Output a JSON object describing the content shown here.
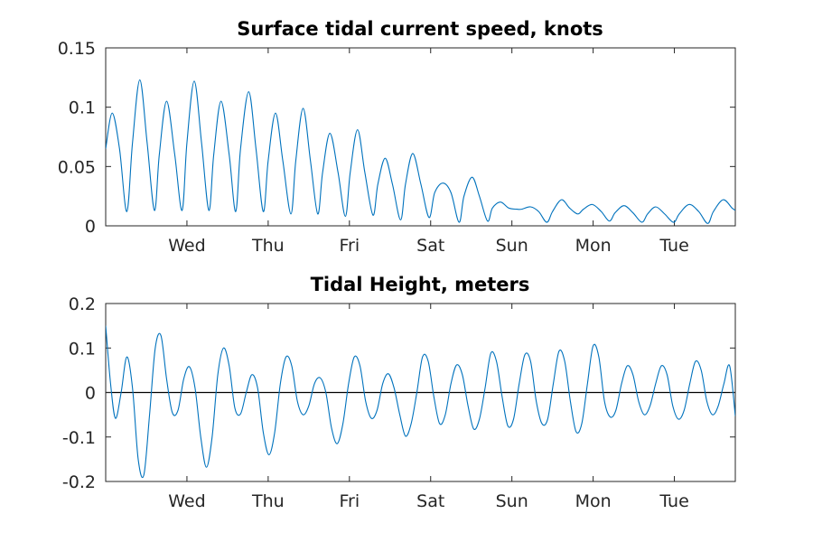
{
  "colors": {
    "series": "#0072bd",
    "axes": "#262626",
    "zero_line": "#000000",
    "background": "#ffffff"
  },
  "chart_data": [
    {
      "type": "line",
      "title": "Surface tidal current speed, knots",
      "xlabel": "",
      "ylabel": "",
      "x_unit": "days",
      "xlim": [
        0,
        7.75
      ],
      "ylim": [
        0,
        0.15
      ],
      "yticks": [
        0,
        0.05,
        0.1,
        0.15
      ],
      "ytick_labels": [
        "0",
        "0.05",
        "0.1",
        "0.15"
      ],
      "xticks": [
        1,
        2,
        3,
        4,
        5,
        6,
        7
      ],
      "xtick_labels": [
        "Wed",
        "Thu",
        "Fri",
        "Sat",
        "Sun",
        "Mon",
        "Tue"
      ],
      "grid": false,
      "series": [
        {
          "x": [
            0,
            0.08,
            0.17,
            0.26,
            0.33,
            0.42,
            0.51,
            0.6,
            0.66,
            0.75,
            0.85,
            0.94,
            1.0,
            1.09,
            1.18,
            1.27,
            1.33,
            1.42,
            1.52,
            1.6,
            1.66,
            1.76,
            1.85,
            1.94,
            2.0,
            2.09,
            2.18,
            2.28,
            2.34,
            2.43,
            2.52,
            2.61,
            2.67,
            2.76,
            2.86,
            2.95,
            3.01,
            3.1,
            3.19,
            3.29,
            3.35,
            3.44,
            3.53,
            3.63,
            3.69,
            3.78,
            3.88,
            3.98,
            4.05,
            4.15,
            4.25,
            4.35,
            4.41,
            4.51,
            4.6,
            4.7,
            4.76,
            4.86,
            4.96,
            5.06,
            5.12,
            5.23,
            5.33,
            5.43,
            5.5,
            5.61,
            5.71,
            5.81,
            5.88,
            5.99,
            6.1,
            6.2,
            6.27,
            6.38,
            6.49,
            6.6,
            6.67,
            6.77,
            6.88,
            6.99,
            7.06,
            7.18,
            7.3,
            7.41,
            7.48,
            7.6,
            7.71,
            7.75
          ],
          "y": [
            0.065,
            0.095,
            0.065,
            0.012,
            0.07,
            0.123,
            0.07,
            0.013,
            0.06,
            0.105,
            0.06,
            0.013,
            0.07,
            0.122,
            0.07,
            0.013,
            0.06,
            0.105,
            0.06,
            0.012,
            0.065,
            0.113,
            0.065,
            0.012,
            0.055,
            0.095,
            0.055,
            0.01,
            0.055,
            0.099,
            0.055,
            0.01,
            0.045,
            0.078,
            0.045,
            0.008,
            0.045,
            0.081,
            0.045,
            0.009,
            0.035,
            0.057,
            0.035,
            0.005,
            0.035,
            0.061,
            0.035,
            0.007,
            0.028,
            0.036,
            0.028,
            0.003,
            0.025,
            0.041,
            0.025,
            0.004,
            0.015,
            0.02,
            0.015,
            0.014,
            0.014,
            0.016,
            0.012,
            0.003,
            0.012,
            0.022,
            0.015,
            0.01,
            0.014,
            0.018,
            0.012,
            0.004,
            0.011,
            0.017,
            0.011,
            0.003,
            0.01,
            0.016,
            0.01,
            0.003,
            0.01,
            0.018,
            0.012,
            0.002,
            0.012,
            0.022,
            0.015,
            0.013
          ]
        }
      ]
    },
    {
      "type": "line",
      "title": "Tidal Height, meters",
      "xlabel": "",
      "ylabel": "",
      "x_unit": "days",
      "xlim": [
        0,
        7.75
      ],
      "ylim": [
        -0.2,
        0.2
      ],
      "yticks": [
        -0.2,
        -0.1,
        0,
        0.1,
        0.2
      ],
      "ytick_labels": [
        "-0.2",
        "-0.1",
        "0",
        "0.1",
        "0.2"
      ],
      "xticks": [
        1,
        2,
        3,
        4,
        5,
        6,
        7
      ],
      "xtick_labels": [
        "Wed",
        "Thu",
        "Fri",
        "Sat",
        "Sun",
        "Mon",
        "Tue"
      ],
      "grid": false,
      "reference_line_y": 0,
      "series": [
        {
          "x": [
            0,
            0.06,
            0.12,
            0.19,
            0.26,
            0.33,
            0.4,
            0.47,
            0.54,
            0.61,
            0.68,
            0.75,
            0.82,
            0.89,
            0.96,
            1.03,
            1.1,
            1.17,
            1.24,
            1.31,
            1.38,
            1.45,
            1.52,
            1.59,
            1.66,
            1.73,
            1.8,
            1.87,
            1.94,
            2.01,
            2.08,
            2.15,
            2.22,
            2.29,
            2.36,
            2.43,
            2.5,
            2.57,
            2.64,
            2.71,
            2.78,
            2.85,
            2.92,
            2.99,
            3.06,
            3.13,
            3.2,
            3.27,
            3.34,
            3.41,
            3.48,
            3.55,
            3.62,
            3.69,
            3.76,
            3.83,
            3.9,
            3.97,
            4.04,
            4.11,
            4.18,
            4.25,
            4.32,
            4.39,
            4.46,
            4.53,
            4.6,
            4.67,
            4.74,
            4.81,
            4.88,
            4.95,
            5.02,
            5.09,
            5.16,
            5.23,
            5.3,
            5.37,
            5.44,
            5.51,
            5.58,
            5.65,
            5.72,
            5.79,
            5.86,
            5.93,
            6.0,
            6.07,
            6.14,
            6.21,
            6.28,
            6.35,
            6.42,
            6.49,
            6.56,
            6.63,
            6.7,
            6.77,
            6.84,
            6.91,
            6.98,
            7.05,
            7.12,
            7.19,
            7.26,
            7.33,
            7.4,
            7.47,
            7.54,
            7.61,
            7.68,
            7.75
          ],
          "y": [
            0.15,
            0.02,
            -0.058,
            0.0,
            0.08,
            0.01,
            -0.15,
            -0.185,
            -0.05,
            0.1,
            0.128,
            0.03,
            -0.045,
            -0.04,
            0.03,
            0.058,
            0.01,
            -0.1,
            -0.168,
            -0.1,
            0.04,
            0.1,
            0.06,
            -0.035,
            -0.048,
            0.0,
            0.04,
            0.01,
            -0.09,
            -0.14,
            -0.09,
            0.02,
            0.08,
            0.06,
            -0.02,
            -0.05,
            -0.03,
            0.02,
            0.033,
            0.0,
            -0.08,
            -0.115,
            -0.07,
            0.02,
            0.08,
            0.06,
            -0.02,
            -0.058,
            -0.04,
            0.02,
            0.042,
            0.01,
            -0.05,
            -0.098,
            -0.07,
            0.0,
            0.08,
            0.07,
            -0.01,
            -0.07,
            -0.05,
            0.02,
            0.062,
            0.04,
            -0.03,
            -0.082,
            -0.06,
            0.01,
            0.088,
            0.07,
            -0.01,
            -0.075,
            -0.06,
            0.02,
            0.085,
            0.07,
            -0.02,
            -0.07,
            -0.06,
            0.02,
            0.093,
            0.07,
            -0.02,
            -0.088,
            -0.07,
            0.02,
            0.105,
            0.08,
            -0.02,
            -0.055,
            -0.04,
            0.02,
            0.06,
            0.04,
            -0.02,
            -0.05,
            -0.03,
            0.02,
            0.06,
            0.04,
            -0.03,
            -0.06,
            -0.04,
            0.02,
            0.07,
            0.05,
            -0.02,
            -0.05,
            -0.03,
            0.02,
            0.06,
            -0.053
          ]
        }
      ]
    }
  ]
}
